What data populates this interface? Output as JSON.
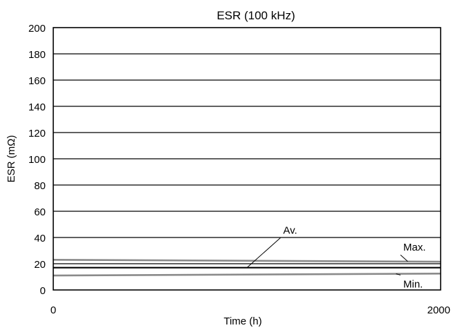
{
  "chart_data": {
    "type": "line",
    "title": "ESR (100 kHz)",
    "xlabel": "Time (h)",
    "ylabel": "ESR (mΩ)",
    "xlim": [
      0,
      2000
    ],
    "ylim": [
      0,
      200
    ],
    "x_ticks": [
      0,
      2000
    ],
    "y_ticks": [
      0,
      20,
      40,
      60,
      80,
      100,
      120,
      140,
      160,
      180,
      200
    ],
    "grid": "horizontal",
    "series": [
      {
        "name": "Max.",
        "color": "#8a8a8a",
        "x": [
          0,
          2000
        ],
        "y": [
          23,
          21.5
        ]
      },
      {
        "name": "Av.",
        "color": "#000000",
        "x": [
          0,
          2000
        ],
        "y": [
          17,
          17
        ]
      },
      {
        "name": "Min.",
        "color": "#8a8a8a",
        "x": [
          0,
          2000
        ],
        "y": [
          11,
          12.5
        ]
      }
    ],
    "annotations": [
      {
        "series": "Av.",
        "text": "Av.",
        "x": 1000,
        "y": 17,
        "label_x": 1180,
        "label_y": 45,
        "anchor": "start"
      },
      {
        "series": "Max.",
        "text": "Max.",
        "x": 1830,
        "y": 21.8,
        "label_x": 1800,
        "label_y": 32,
        "anchor": "start"
      },
      {
        "series": "Min.",
        "text": "Min.",
        "x": 1770,
        "y": 12.3,
        "label_x": 1800,
        "label_y": 4,
        "anchor": "start"
      }
    ]
  }
}
